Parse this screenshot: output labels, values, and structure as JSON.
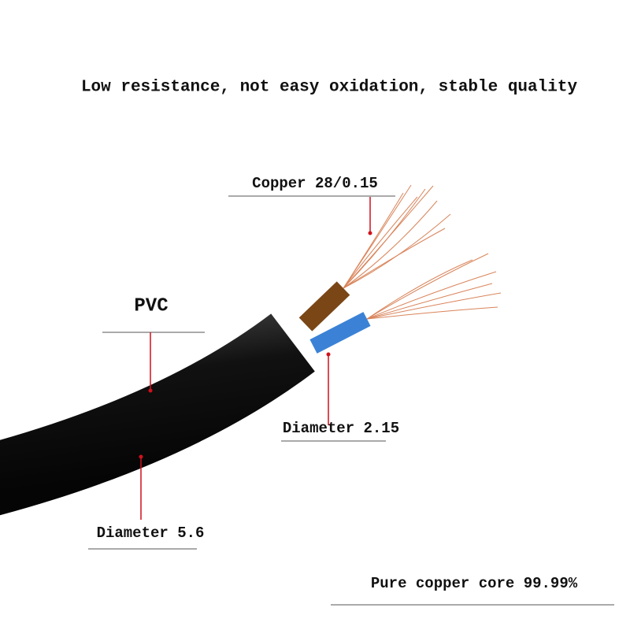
{
  "header": {
    "title": "Low resistance, not easy oxidation, stable quality"
  },
  "labels": {
    "copper": "Copper 28/0.15",
    "pvc": "PVC",
    "inner_diameter": "Diameter 2.15",
    "outer_diameter": "Diameter 5.6",
    "core": "Pure copper core 99.99%"
  }
}
